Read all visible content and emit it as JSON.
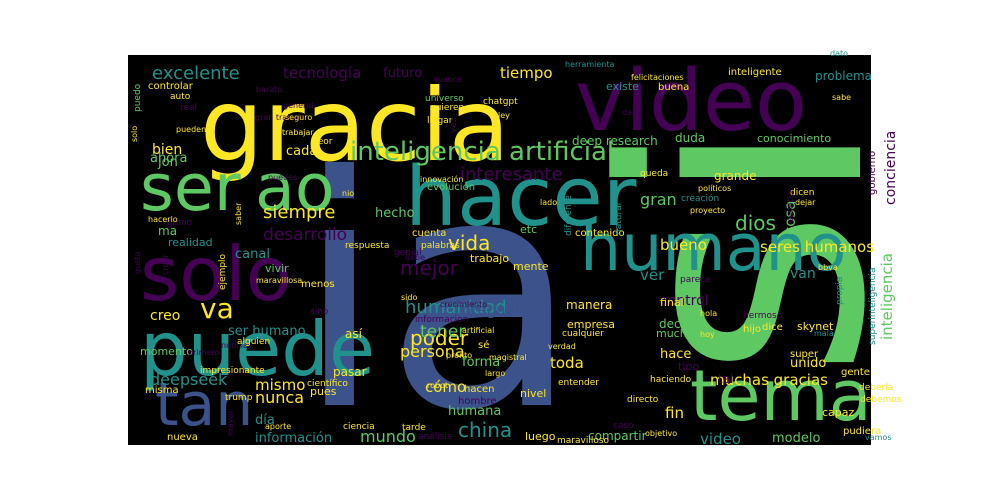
{
  "cloud": {
    "background": "#000000",
    "palette": [
      "#440154",
      "#3b528b",
      "#21918c",
      "#5ec962",
      "#fde725"
    ],
    "words": [
      {
        "text": "ia"
      },
      {
        "text": "si"
      },
      {
        "text": "gracia"
      },
      {
        "text": "video"
      },
      {
        "text": "hacer"
      },
      {
        "text": "humano"
      },
      {
        "text": "puede"
      },
      {
        "text": "solo"
      },
      {
        "text": "ser"
      },
      {
        "text": "ao"
      },
      {
        "text": "tema"
      },
      {
        "text": "tan"
      },
      {
        "text": "inteligencia artificial"
      },
      {
        "text": "excelente"
      },
      {
        "text": "tecnología"
      },
      {
        "text": "futuro"
      },
      {
        "text": "tiempo"
      },
      {
        "text": "interesante"
      },
      {
        "text": "conciencia"
      },
      {
        "text": "inteligencia"
      },
      {
        "text": "vida"
      },
      {
        "text": "mejor"
      },
      {
        "text": "humanidad"
      },
      {
        "text": "poder"
      },
      {
        "text": "persona"
      },
      {
        "text": "china"
      },
      {
        "text": "siempre"
      },
      {
        "text": "desarrollo"
      },
      {
        "text": "va"
      },
      {
        "text": "bien"
      },
      {
        "text": "cada"
      },
      {
        "text": "bueno"
      },
      {
        "text": "dios"
      },
      {
        "text": "gran"
      },
      {
        "text": "cosa"
      },
      {
        "text": "hecho"
      },
      {
        "text": "tener"
      },
      {
        "text": "nunca"
      },
      {
        "text": "mismo"
      },
      {
        "text": "deepseek"
      },
      {
        "text": "mundo"
      },
      {
        "text": "toda"
      },
      {
        "text": "cómo"
      },
      {
        "text": "ser humano"
      },
      {
        "text": "creo"
      },
      {
        "text": "muchas gracias"
      },
      {
        "text": "control"
      },
      {
        "text": "problema"
      },
      {
        "text": "gobierno"
      },
      {
        "text": "seres humanos"
      },
      {
        "text": "pregunta"
      },
      {
        "text": "información"
      },
      {
        "text": "día"
      },
      {
        "text": "video"
      },
      {
        "text": "ma"
      },
      {
        "text": "ahora"
      },
      {
        "text": "jon"
      },
      {
        "text": "canal"
      },
      {
        "text": "ver"
      },
      {
        "text": "van"
      },
      {
        "text": "hace"
      },
      {
        "text": "tal"
      },
      {
        "text": "unido"
      },
      {
        "text": "fin"
      },
      {
        "text": "final"
      },
      {
        "text": "deep research"
      },
      {
        "text": "conocimiento"
      },
      {
        "text": "inteligente"
      },
      {
        "text": "existe"
      },
      {
        "text": "buena"
      },
      {
        "text": "herramienta"
      },
      {
        "text": "felicitaciones"
      },
      {
        "text": "dato"
      },
      {
        "text": "humana"
      },
      {
        "text": "forma"
      },
      {
        "text": "modelo"
      },
      {
        "text": "compartir"
      },
      {
        "text": "luego"
      },
      {
        "text": "capaz"
      },
      {
        "text": "pudiera"
      },
      {
        "text": "realidad"
      },
      {
        "text": "momento"
      },
      {
        "text": "vivir"
      },
      {
        "text": "etc"
      },
      {
        "text": "manera"
      },
      {
        "text": "empresa"
      },
      {
        "text": "grande"
      },
      {
        "text": "dice"
      },
      {
        "text": "skynet"
      },
      {
        "text": "duda"
      },
      {
        "text": "misma"
      },
      {
        "text": "nueva"
      },
      {
        "text": "gente"
      },
      {
        "text": "pasar"
      },
      {
        "text": "así"
      },
      {
        "text": "menos"
      },
      {
        "text": "contenido"
      },
      {
        "text": "trabajo"
      },
      {
        "text": "mente"
      },
      {
        "text": "evolución"
      },
      {
        "text": "decir"
      },
      {
        "text": "mucha"
      },
      {
        "text": "hijo"
      },
      {
        "text": "super"
      },
      {
        "text": "superinteligencia"
      },
      {
        "text": "propia"
      },
      {
        "text": "mala"
      },
      {
        "text": "hermoso"
      },
      {
        "text": "hola"
      },
      {
        "text": "hoy"
      },
      {
        "text": "bbva"
      },
      {
        "text": "debería"
      },
      {
        "text": "debemos"
      },
      {
        "text": "vamos"
      },
      {
        "text": "controlar"
      },
      {
        "text": "auto"
      },
      {
        "text": "real"
      },
      {
        "text": "pueden"
      },
      {
        "text": "puedo"
      },
      {
        "text": "solo"
      },
      {
        "text": "barato"
      },
      {
        "text": "gran trabajo"
      },
      {
        "text": "trabajar"
      },
      {
        "text": "seguro"
      },
      {
        "text": "general"
      },
      {
        "text": "quieren"
      },
      {
        "text": "universo"
      },
      {
        "text": "chatgpt"
      },
      {
        "text": "llegar"
      },
      {
        "text": "ley"
      },
      {
        "text": "seor"
      },
      {
        "text": "nio"
      },
      {
        "text": "innovación"
      },
      {
        "text": "cuenta"
      },
      {
        "text": "respuesta"
      },
      {
        "text": "genial"
      },
      {
        "text": "palabras"
      },
      {
        "text": "crecimiento"
      },
      {
        "text": "informacion"
      },
      {
        "text": "sido"
      },
      {
        "text": "cualquier"
      },
      {
        "text": "parece"
      },
      {
        "text": "sé"
      },
      {
        "text": "verdad"
      },
      {
        "text": "pronto"
      },
      {
        "text": "artificial"
      },
      {
        "text": "magistral"
      },
      {
        "text": "largo"
      },
      {
        "text": "robot"
      },
      {
        "text": "hacen"
      },
      {
        "text": "nivel"
      },
      {
        "text": "entender"
      },
      {
        "text": "hombre"
      },
      {
        "text": "tipo"
      },
      {
        "text": "haciendo"
      },
      {
        "text": "directo"
      },
      {
        "text": "ciencia"
      },
      {
        "text": "tarde"
      },
      {
        "text": "caso"
      },
      {
        "text": "análisis"
      },
      {
        "text": "maravilloso"
      },
      {
        "text": "objetivo"
      },
      {
        "text": "aporte"
      },
      {
        "text": "trump"
      },
      {
        "text": "mayor"
      },
      {
        "text": "pues"
      },
      {
        "text": "científico"
      },
      {
        "text": "impresionante"
      },
      {
        "text": "noticia"
      },
      {
        "text": "alguien"
      },
      {
        "text": "sino"
      },
      {
        "text": "primero"
      },
      {
        "text": "maravillosa"
      },
      {
        "text": "ejemplo"
      },
      {
        "text": "genio"
      },
      {
        "text": "hacerlo"
      },
      {
        "text": "saber"
      },
      {
        "text": "crear"
      },
      {
        "text": "gusta"
      },
      {
        "text": "lado"
      },
      {
        "text": "diferente"
      },
      {
        "text": "natural"
      },
      {
        "text": "creación"
      },
      {
        "text": "proyecto"
      },
      {
        "text": "políticos"
      },
      {
        "text": "dejar"
      },
      {
        "text": "dicen"
      },
      {
        "text": "servicio"
      },
      {
        "text": "queda"
      },
      {
        "text": "sabe"
      },
      {
        "text": "avance"
      },
      {
        "text": "debe"
      },
      {
        "text": "da"
      },
      {
        "text": "vez"
      },
      {
        "text": "puedes"
      }
    ]
  }
}
